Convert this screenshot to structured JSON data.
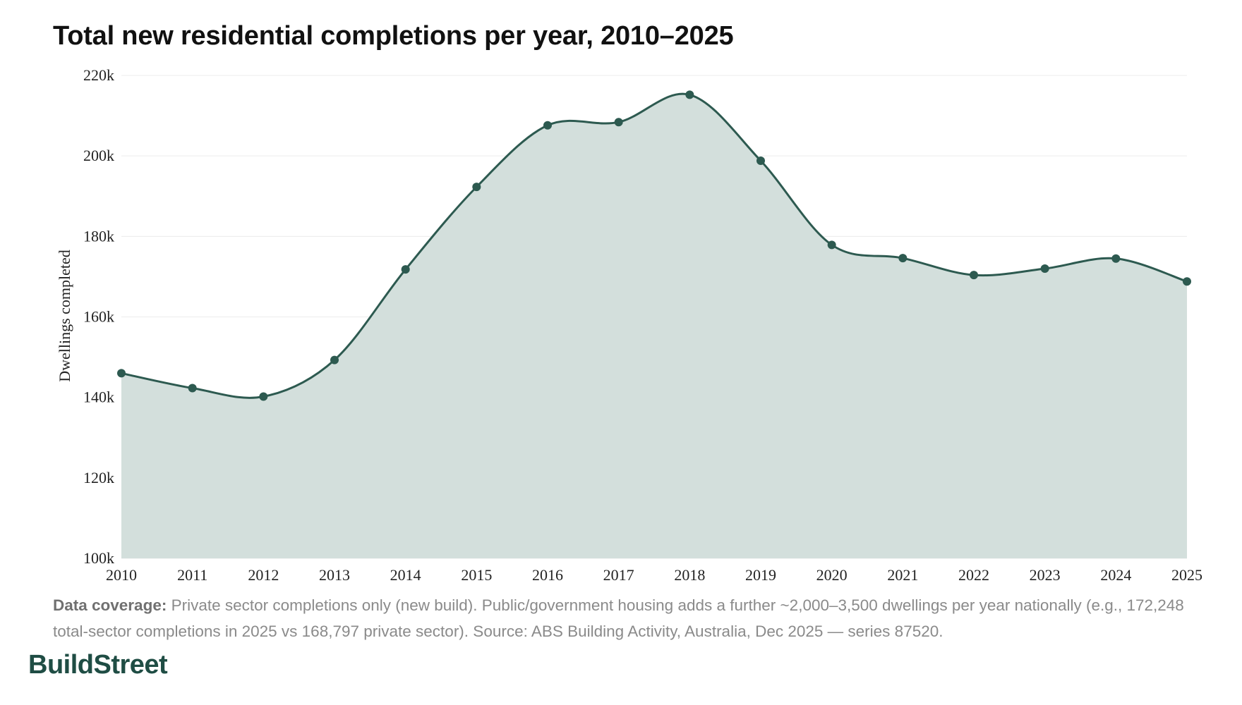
{
  "chart_data": {
    "type": "area",
    "title": "Total new residential completions per year, 2010–2025",
    "xlabel": "",
    "ylabel": "Dwellings completed",
    "x": [
      2010,
      2011,
      2012,
      2013,
      2014,
      2015,
      2016,
      2017,
      2018,
      2019,
      2020,
      2021,
      2022,
      2023,
      2024,
      2025
    ],
    "x_tick_labels": [
      "2010",
      "2011",
      "2012",
      "2013",
      "2014",
      "2015",
      "2016",
      "2017",
      "2018",
      "2019",
      "2020",
      "2021",
      "2022",
      "2023",
      "2024",
      "2025"
    ],
    "values": [
      146000,
      142300,
      140200,
      149300,
      171800,
      192300,
      207600,
      208400,
      215200,
      198800,
      177900,
      174600,
      170400,
      172000,
      174500,
      168797
    ],
    "ylim": [
      100000,
      220000
    ],
    "y_ticks": [
      100000,
      120000,
      140000,
      160000,
      180000,
      200000,
      220000
    ],
    "y_tick_labels": [
      "100k",
      "120k",
      "140k",
      "160k",
      "180k",
      "200k",
      "220k"
    ],
    "grid": "horizontal",
    "smooth": true,
    "markers": true,
    "legend": "none",
    "colors": {
      "line": "#2d5a50",
      "fill": "#d3dfdc",
      "gridline": "#ececec"
    }
  },
  "footnote": {
    "label": "Data coverage:",
    "text": "Private sector completions only (new build). Public/government housing adds a further ~2,000–3,500 dwellings per year nationally (e.g., 172,248 total-sector completions in 2025 vs 168,797 private sector). Source: ABS Building Activity, Australia, Dec 2025 — series 87520."
  },
  "brand": {
    "name": "BuildStreet",
    "color": "#1f4d44"
  }
}
